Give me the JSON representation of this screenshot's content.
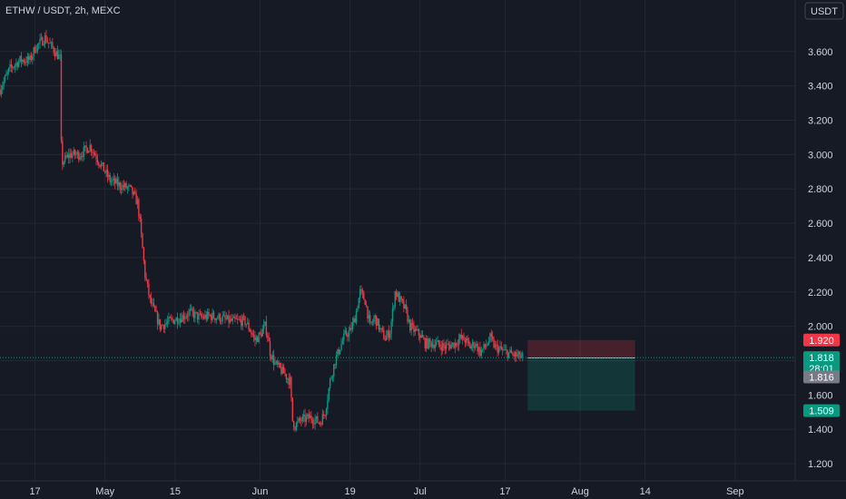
{
  "title": "ETHW / USDT, 2h, MEXC",
  "currency_button": "USDT",
  "chart_data": {
    "type": "candlestick",
    "symbol": "ETHW / USDT",
    "interval": "2h",
    "exchange": "MEXC",
    "ylim": [
      1.1,
      3.9
    ],
    "y_ticks": [
      "1.200",
      "1.400",
      "1.600",
      "1.800",
      "2.000",
      "2.200",
      "2.400",
      "2.600",
      "2.800",
      "3.000",
      "3.200",
      "3.400",
      "3.600"
    ],
    "x_ticks": [
      "17",
      "May",
      "15",
      "Jun",
      "19",
      "Jul",
      "17",
      "Aug",
      "14",
      "Sep"
    ],
    "x_tick_days": [
      0,
      14,
      28,
      45,
      63,
      77,
      94,
      109,
      122,
      140
    ],
    "data_end_day": 97.5,
    "x_range_days": [
      -7,
      152
    ],
    "series_outline": [
      [
        -7,
        3.38
      ],
      [
        -5,
        3.5
      ],
      [
        -3,
        3.55
      ],
      [
        -1,
        3.55
      ],
      [
        0,
        3.62
      ],
      [
        2,
        3.68
      ],
      [
        3.5,
        3.62
      ],
      [
        5,
        3.56
      ],
      [
        5.3,
        2.95
      ],
      [
        7,
        3.0
      ],
      [
        9,
        3.0
      ],
      [
        11,
        3.05
      ],
      [
        13,
        2.95
      ],
      [
        15,
        2.85
      ],
      [
        17,
        2.82
      ],
      [
        19,
        2.8
      ],
      [
        20.5,
        2.72
      ],
      [
        21,
        2.6
      ],
      [
        22,
        2.3
      ],
      [
        23,
        2.15
      ],
      [
        25,
        2.0
      ],
      [
        27,
        2.03
      ],
      [
        29,
        2.05
      ],
      [
        31,
        2.08
      ],
      [
        33,
        2.05
      ],
      [
        35,
        2.06
      ],
      [
        37,
        2.05
      ],
      [
        39,
        2.03
      ],
      [
        41,
        2.03
      ],
      [
        42,
        2.03
      ],
      [
        43,
        1.98
      ],
      [
        44,
        1.92
      ],
      [
        45,
        1.95
      ],
      [
        46,
        2.0
      ],
      [
        46.5,
        1.95
      ],
      [
        47,
        1.85
      ],
      [
        48,
        1.78
      ],
      [
        50,
        1.72
      ],
      [
        51,
        1.68
      ],
      [
        51.5,
        1.45
      ],
      [
        52,
        1.42
      ],
      [
        53,
        1.45
      ],
      [
        55,
        1.47
      ],
      [
        57,
        1.44
      ],
      [
        58,
        1.5
      ],
      [
        59,
        1.68
      ],
      [
        60,
        1.8
      ],
      [
        61,
        1.88
      ],
      [
        62,
        1.95
      ],
      [
        63,
        1.97
      ],
      [
        64,
        2.05
      ],
      [
        65,
        2.2
      ],
      [
        66,
        2.15
      ],
      [
        67,
        2.0
      ],
      [
        68,
        2.05
      ],
      [
        69,
        1.98
      ],
      [
        70,
        1.93
      ],
      [
        71,
        1.97
      ],
      [
        72,
        2.2
      ],
      [
        73,
        2.15
      ],
      [
        74,
        2.1
      ],
      [
        75,
        2.0
      ],
      [
        76,
        1.97
      ],
      [
        77,
        1.95
      ],
      [
        78,
        1.9
      ],
      [
        80,
        1.9
      ],
      [
        82,
        1.88
      ],
      [
        84,
        1.9
      ],
      [
        85,
        1.93
      ],
      [
        86,
        1.92
      ],
      [
        87,
        1.88
      ],
      [
        88,
        1.9
      ],
      [
        89,
        1.85
      ],
      [
        90,
        1.88
      ],
      [
        91,
        1.93
      ],
      [
        92,
        1.88
      ],
      [
        94,
        1.85
      ],
      [
        96,
        1.83
      ],
      [
        97.5,
        1.82
      ]
    ],
    "price_levels": {
      "stop_loss": {
        "label": "1.920",
        "value": 1.92,
        "color": "#f23645"
      },
      "last_price": {
        "label": "1.818",
        "value": 1.818,
        "countdown": "28:01",
        "color": "#089981"
      },
      "entry": {
        "label": "1.816",
        "value": 1.816,
        "color": "#787b86"
      },
      "take_profit": {
        "label": "1.509",
        "value": 1.509,
        "color": "#089981"
      }
    },
    "position_box": {
      "start_day": 98.5,
      "end_day": 120,
      "entry": 1.816,
      "stop": 1.92,
      "target": 1.509
    },
    "colors": {
      "up": "#089981",
      "down": "#f23645",
      "grid": "#242832",
      "background": "#161a25"
    }
  }
}
